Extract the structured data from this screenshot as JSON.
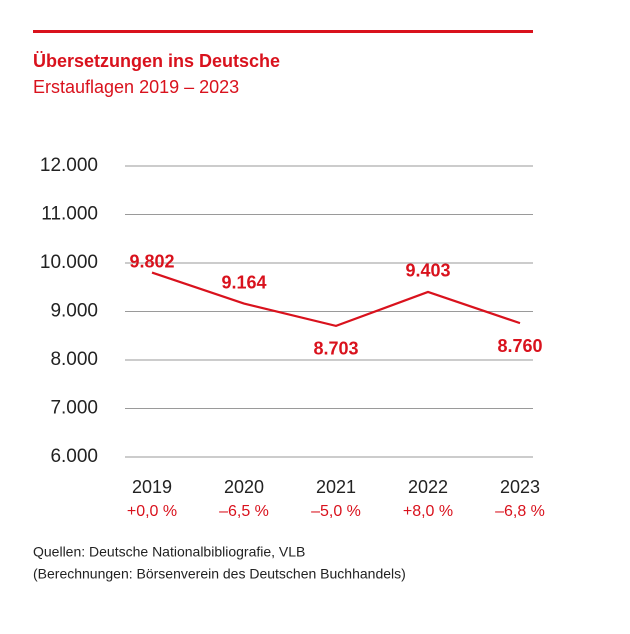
{
  "chart_data": {
    "type": "line",
    "title": "Übersetzungen ins Deutsche",
    "subtitle": "Erstauflagen 2019 – 2023",
    "categories": [
      "2019",
      "2020",
      "2021",
      "2022",
      "2023"
    ],
    "changes": [
      "+0,0 %",
      "–6,5 %",
      "–5,0 %",
      "+8,0 %",
      "–6,8 %"
    ],
    "values": [
      9802,
      9164,
      8703,
      9403,
      8760
    ],
    "value_labels": [
      "9.802",
      "9.164",
      "8.703",
      "9.403",
      "8.760"
    ],
    "color": "#d9121d",
    "ylim": [
      6000,
      12000
    ],
    "yticks": [
      {
        "value": 6000,
        "label": "6.000"
      },
      {
        "value": 7000,
        "label": "7.000"
      },
      {
        "value": 8000,
        "label": "8.000"
      },
      {
        "value": 9000,
        "label": "9.000"
      },
      {
        "value": 10000,
        "label": "10.000"
      },
      {
        "value": 11000,
        "label": "11.000"
      },
      {
        "value": 12000,
        "label": "12.000"
      }
    ],
    "grid": true,
    "sources": [
      "Quellen: Deutsche Nationalbibliografie, VLB",
      "(Berechnungen: Börsenverein des Deutschen Buchhandels)"
    ]
  }
}
